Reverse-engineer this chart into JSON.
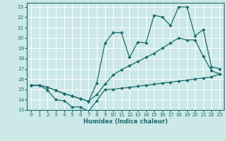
{
  "xlabel": "Humidex (Indice chaleur)",
  "bg_color": "#cce8e8",
  "grid_color": "#ffffff",
  "line_color": "#1a6b6b",
  "xlim": [
    -0.5,
    23.5
  ],
  "ylim": [
    13,
    23.4
  ],
  "xticks": [
    0,
    1,
    2,
    3,
    4,
    5,
    6,
    7,
    8,
    9,
    10,
    11,
    12,
    13,
    14,
    15,
    16,
    17,
    18,
    19,
    20,
    21,
    22,
    23
  ],
  "yticks": [
    13,
    14,
    15,
    16,
    17,
    18,
    19,
    20,
    21,
    22,
    23
  ],
  "line_bottom_x": [
    0,
    1,
    2,
    3,
    4,
    5,
    6,
    7,
    8,
    9,
    10,
    11,
    12,
    13,
    14,
    15,
    16,
    17,
    18,
    19,
    20,
    21,
    22,
    23
  ],
  "line_bottom_y": [
    15.4,
    15.4,
    14.9,
    14.0,
    13.9,
    13.3,
    13.3,
    12.85,
    13.9,
    15.0,
    15.0,
    15.1,
    15.2,
    15.3,
    15.4,
    15.5,
    15.6,
    15.7,
    15.8,
    15.9,
    16.0,
    16.1,
    16.2,
    16.5
  ],
  "line_mid_x": [
    0,
    1,
    2,
    3,
    4,
    5,
    6,
    7,
    8,
    9,
    10,
    11,
    12,
    13,
    14,
    15,
    16,
    17,
    18,
    19,
    20,
    21,
    22,
    23
  ],
  "line_mid_y": [
    15.4,
    15.4,
    15.2,
    14.9,
    14.6,
    14.35,
    14.1,
    13.85,
    14.5,
    15.5,
    16.4,
    16.9,
    17.3,
    17.7,
    18.1,
    18.5,
    19.0,
    19.5,
    20.0,
    19.8,
    19.8,
    18.2,
    16.8,
    16.5
  ],
  "line_top_x": [
    0,
    1,
    2,
    3,
    4,
    5,
    6,
    7,
    8,
    9,
    10,
    11,
    12,
    13,
    14,
    15,
    16,
    17,
    18,
    19,
    20,
    21,
    22,
    23
  ],
  "line_top_y": [
    15.4,
    15.4,
    15.2,
    14.9,
    14.6,
    14.35,
    14.1,
    13.85,
    15.6,
    19.5,
    20.5,
    20.5,
    18.1,
    19.6,
    19.5,
    22.2,
    22.0,
    21.2,
    23.0,
    23.0,
    20.2,
    20.8,
    17.2,
    17.0
  ]
}
